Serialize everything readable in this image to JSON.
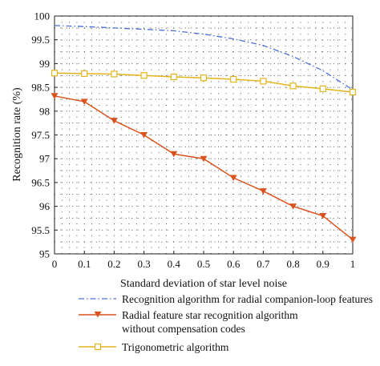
{
  "chart_data": {
    "type": "line",
    "title": "",
    "xlabel": "Standard deviation of star level noise",
    "ylabel": "Recognition rate (%)",
    "xlim": [
      0,
      1
    ],
    "ylim": [
      95,
      100
    ],
    "xticks": [
      "0",
      "0.1",
      "0.2",
      "0.3",
      "0.4",
      "0.5",
      "0.6",
      "0.7",
      "0.8",
      "0.9",
      "1"
    ],
    "yticks": [
      "95",
      "95.5",
      "96",
      "96.5",
      "97",
      "97.5",
      "98",
      "98.5",
      "99",
      "99.5",
      "100"
    ],
    "grid": "dotted",
    "legend_position": "bottom",
    "x": [
      0,
      0.1,
      0.2,
      0.3,
      0.4,
      0.5,
      0.6,
      0.7,
      0.8,
      0.9,
      1
    ],
    "series": [
      {
        "name": "Recognition algorithm for radial companion-loop features",
        "color": "#4a6fd8",
        "style": "dashdot",
        "marker": "none",
        "values": [
          99.8,
          99.78,
          99.75,
          99.72,
          99.69,
          99.62,
          99.52,
          99.38,
          99.15,
          98.85,
          98.45
        ]
      },
      {
        "name": "Radial feature star recognition algorithm without compensation codes",
        "color": "#d9531e",
        "style": "solid",
        "marker": "triangle-down",
        "values": [
          98.32,
          98.2,
          97.8,
          97.5,
          97.1,
          97.0,
          96.6,
          96.32,
          96.0,
          95.8,
          95.3
        ]
      },
      {
        "name": "Trigonometric algorithm",
        "color": "#e3b51a",
        "style": "solid",
        "marker": "square",
        "values": [
          98.8,
          98.79,
          98.78,
          98.75,
          98.72,
          98.7,
          98.67,
          98.63,
          98.53,
          98.47,
          98.4
        ]
      }
    ]
  },
  "legend": {
    "items": [
      {
        "line1": "Recognition algorithm for radial companion-loop features",
        "line2": ""
      },
      {
        "line1": "Radial feature star recognition algorithm",
        "line2": "without compensation codes"
      },
      {
        "line1": "Trigonometric algorithm",
        "line2": ""
      }
    ]
  }
}
